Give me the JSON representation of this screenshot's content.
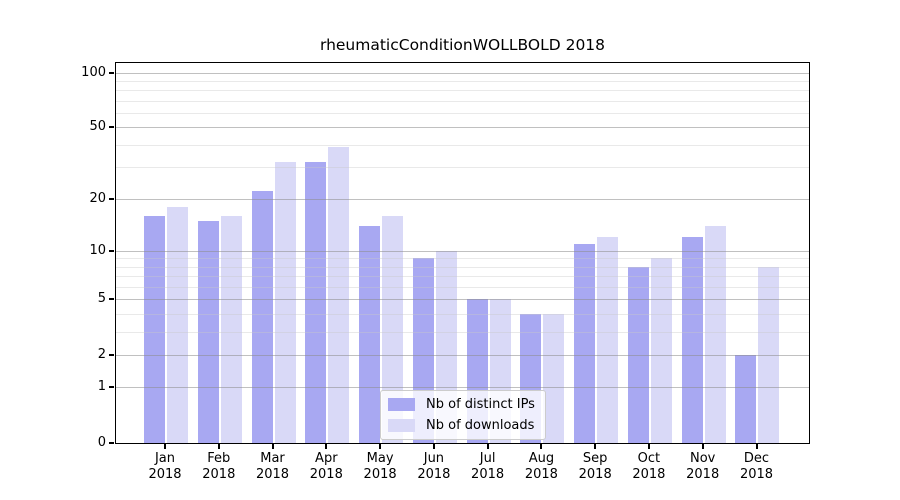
{
  "title": "rheumaticConditionWOLLBOLD 2018",
  "chart_data": {
    "type": "bar",
    "title": "rheumaticConditionWOLLBOLD 2018",
    "categories": [
      "Jan 2018",
      "Feb 2018",
      "Mar 2018",
      "Apr 2018",
      "May 2018",
      "Jun 2018",
      "Jul 2018",
      "Aug 2018",
      "Sep 2018",
      "Oct 2018",
      "Nov 2018",
      "Dec 2018"
    ],
    "x_tick_months": [
      "Jan",
      "Feb",
      "Mar",
      "Apr",
      "May",
      "Jun",
      "Jul",
      "Aug",
      "Sep",
      "Oct",
      "Nov",
      "Dec"
    ],
    "x_tick_year": "2018",
    "series": [
      {
        "name": "Nb of distinct IPs",
        "color": "#a8a8f2",
        "values": [
          16,
          15,
          22,
          32,
          14,
          9,
          5,
          4,
          11,
          8,
          12,
          2
        ]
      },
      {
        "name": "Nb of downloads",
        "color": "#d9d9f7",
        "values": [
          18,
          16,
          32,
          39,
          16,
          10,
          5,
          4,
          12,
          9,
          14,
          8
        ]
      }
    ],
    "y_scale": "log1p",
    "y_axis_tick_values": [
      0,
      1,
      2,
      5,
      10,
      20,
      50,
      100
    ],
    "y_axis_tick_labels": [
      "0",
      "1",
      "2",
      "5",
      "10",
      "20",
      "50",
      "100"
    ],
    "y_minor_gridline_values": [
      3,
      4,
      6,
      7,
      8,
      9,
      30,
      40,
      60,
      70,
      80,
      90
    ],
    "ylim": [
      0,
      113
    ],
    "xlabel": "",
    "ylabel": "",
    "grid": true,
    "legend_position": "lower-center-inside"
  },
  "colors": {
    "bar_distinct_ips": "#a8a8f2",
    "bar_downloads": "#d9d9f7",
    "major_gridline": "#bdbdbd",
    "minor_gridline": "#ebebeb",
    "axis_line": "#000000",
    "text": "#000000",
    "legend_background": "rgba(255,255,255,0.8)",
    "legend_border": "#cccccc"
  }
}
